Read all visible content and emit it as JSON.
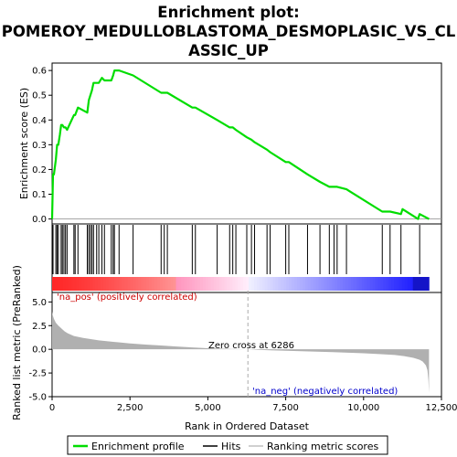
{
  "chart_data": {
    "type": "line",
    "title_line1": "Enrichment plot:",
    "title_line2": "POMEROY_MEDULLOBLASTOMA_DESMOPLASIC_VS_CL",
    "title_line3": "ASSIC_UP",
    "top_ylabel": "Enrichment score (ES)",
    "bottom_ylabel": "Ranked list metric (PreRanked)",
    "xlabel": "Rank in Ordered Dataset",
    "xlim": [
      0,
      12500
    ],
    "es_ylim": [
      -0.02,
      0.63
    ],
    "metric_ylim": [
      -5,
      6
    ],
    "x_ticks": [
      0,
      2500,
      5000,
      7500,
      10000,
      12500
    ],
    "x_tick_labels": [
      "0",
      "2,500",
      "5,000",
      "7,500",
      "10,000",
      "12,500"
    ],
    "es_ticks": [
      0.0,
      0.1,
      0.2,
      0.3,
      0.4,
      0.5,
      0.6
    ],
    "es_tick_labels": [
      "0.0",
      "0.1",
      "0.2",
      "0.3",
      "0.4",
      "0.5",
      "0.6"
    ],
    "metric_ticks": [
      -5.0,
      -2.5,
      0.0,
      2.5,
      5.0
    ],
    "metric_tick_labels": [
      "-5.0",
      "-2.5",
      "0.0",
      "2.5",
      "5.0"
    ],
    "pos_label": "'na_pos' (positively correlated)",
    "neg_label": "'na_neg' (negatively correlated)",
    "zero_cross_label": "Zero cross at 6286",
    "zero_cross": 6286,
    "n_genes": 12100,
    "legend": [
      "Enrichment profile",
      "Hits",
      "Ranking metric scores"
    ],
    "colors": {
      "profile": "#00dd00",
      "hits": "#000000",
      "metric_fill": "#b0b0b0",
      "pos_text": "#cc0000",
      "neg_text": "#0000cc",
      "zero_line": "#aaaaaa"
    },
    "es_profile": {
      "x": [
        0,
        30,
        60,
        120,
        160,
        200,
        250,
        290,
        330,
        380,
        430,
        480,
        700,
        740,
        830,
        1130,
        1180,
        1230,
        1280,
        1330,
        1430,
        1500,
        1600,
        1680,
        1900,
        1960,
        2000,
        2150,
        2600,
        3500,
        3600,
        3700,
        4500,
        4600,
        5300,
        5700,
        5800,
        5900,
        6250,
        6400,
        6500,
        6900,
        7000,
        7500,
        7600,
        8200,
        8600,
        8900,
        9050,
        9150,
        9450,
        10600,
        10850,
        11200,
        11250,
        11500,
        11750,
        11800,
        12100
      ],
      "y": [
        0.0,
        0.18,
        0.18,
        0.24,
        0.3,
        0.3,
        0.34,
        0.38,
        0.38,
        0.37,
        0.37,
        0.36,
        0.42,
        0.42,
        0.45,
        0.43,
        0.48,
        0.5,
        0.52,
        0.55,
        0.55,
        0.55,
        0.57,
        0.56,
        0.56,
        0.58,
        0.6,
        0.6,
        0.58,
        0.51,
        0.51,
        0.51,
        0.45,
        0.45,
        0.4,
        0.37,
        0.37,
        0.36,
        0.33,
        0.32,
        0.31,
        0.28,
        0.27,
        0.23,
        0.23,
        0.18,
        0.15,
        0.13,
        0.13,
        0.13,
        0.12,
        0.03,
        0.03,
        0.02,
        0.04,
        0.02,
        0.0,
        0.02,
        0.0
      ]
    },
    "hits": [
      30,
      120,
      160,
      200,
      290,
      330,
      380,
      430,
      480,
      700,
      740,
      830,
      1130,
      1180,
      1230,
      1280,
      1330,
      1430,
      1500,
      1600,
      1680,
      1900,
      1960,
      2000,
      2150,
      2600,
      3500,
      3600,
      3700,
      4500,
      4600,
      5300,
      5700,
      5800,
      5900,
      6250,
      6400,
      6500,
      6900,
      7000,
      7500,
      7600,
      8200,
      8600,
      8900,
      9050,
      9150,
      9450,
      10600,
      10850,
      11200,
      11800
    ],
    "metric_curve": {
      "x": [
        0,
        20,
        60,
        120,
        200,
        300,
        400,
        500,
        700,
        1000,
        1500,
        2000,
        2500,
        3000,
        3500,
        4000,
        4500,
        5000,
        5500,
        6000,
        6286,
        6600,
        7000,
        7500,
        8000,
        8500,
        9000,
        9500,
        10000,
        10500,
        11000,
        11300,
        11600,
        11800,
        11900,
        12000,
        12050,
        12080,
        12100
      ],
      "y": [
        4.0,
        3.6,
        3.2,
        2.8,
        2.5,
        2.2,
        1.9,
        1.7,
        1.4,
        1.2,
        0.95,
        0.78,
        0.62,
        0.5,
        0.4,
        0.3,
        0.2,
        0.12,
        0.06,
        0.02,
        0.0,
        -0.05,
        -0.1,
        -0.15,
        -0.2,
        -0.25,
        -0.3,
        -0.36,
        -0.42,
        -0.5,
        -0.6,
        -0.72,
        -0.9,
        -1.1,
        -1.3,
        -1.7,
        -2.2,
        -3.2,
        -4.6
      ]
    }
  }
}
